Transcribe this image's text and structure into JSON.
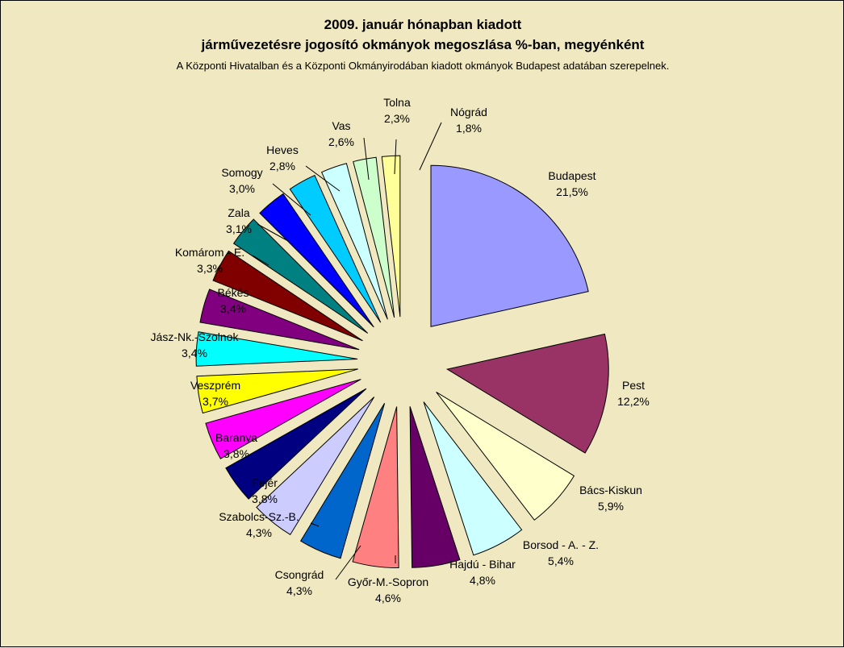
{
  "chart_data": {
    "type": "pie",
    "title": "2009. január hónapban kiadott",
    "title_line2": "járművezetésre jogosító okmányok megoszlása %-ban, megyénként",
    "subtitle": "A Központi Hivatalban és a Központi Okmányirodában kiadott okmányok Budapest adatában szerepelnek.",
    "background_color": "#efe8c0",
    "slices": [
      {
        "label": "Budapest",
        "value": 21.5,
        "value_label": "21,5%",
        "color": "#9999ff"
      },
      {
        "label": "Pest",
        "value": 12.2,
        "value_label": "12,2%",
        "color": "#993366"
      },
      {
        "label": "Bács-Kiskun",
        "value": 5.9,
        "value_label": "5,9%",
        "color": "#ffffcc"
      },
      {
        "label": "Borsod - A. - Z.",
        "value": 5.4,
        "value_label": "5,4%",
        "color": "#ccffff"
      },
      {
        "label": "Hajdú - Bihar",
        "value": 4.8,
        "value_label": "4,8%",
        "color": "#660066"
      },
      {
        "label": "Győr-M.-Sopron",
        "value": 4.6,
        "value_label": "4,6%",
        "color": "#ff8080"
      },
      {
        "label": "Csongrád",
        "value": 4.3,
        "value_label": "4,3%",
        "color": "#0066cc"
      },
      {
        "label": "Szabolcs-Sz.-B.",
        "value": 4.3,
        "value_label": "4,3%",
        "color": "#ccccff"
      },
      {
        "label": "Fejér",
        "value": 3.8,
        "value_label": "3,8%",
        "color": "#000080"
      },
      {
        "label": "Baranya",
        "value": 3.8,
        "value_label": "3,8%",
        "color": "#ff00ff"
      },
      {
        "label": "Veszprém",
        "value": 3.7,
        "value_label": "3,7%",
        "color": "#ffff00"
      },
      {
        "label": "Jász-Nk.-Szolnok",
        "value": 3.4,
        "value_label": "3,4%",
        "color": "#00ffff"
      },
      {
        "label": "Békés",
        "value": 3.4,
        "value_label": "3,4%",
        "color": "#800080"
      },
      {
        "label": "Komárom - E.",
        "value": 3.3,
        "value_label": "3,3%",
        "color": "#800000"
      },
      {
        "label": "Zala",
        "value": 3.1,
        "value_label": "3,1%",
        "color": "#008080"
      },
      {
        "label": "Somogy",
        "value": 3.0,
        "value_label": "3,0%",
        "color": "#0000ff"
      },
      {
        "label": "Heves",
        "value": 2.8,
        "value_label": "2,8%",
        "color": "#00ccff"
      },
      {
        "label": "Vas",
        "value": 2.6,
        "value_label": "2,6%",
        "color": "#ccffff"
      },
      {
        "label": "Tolna",
        "value": 2.3,
        "value_label": "2,3%",
        "color": "#ccffcc"
      },
      {
        "label": "Nógrád",
        "value": 1.8,
        "value_label": "1,8%",
        "color": "#ffff99"
      }
    ]
  }
}
